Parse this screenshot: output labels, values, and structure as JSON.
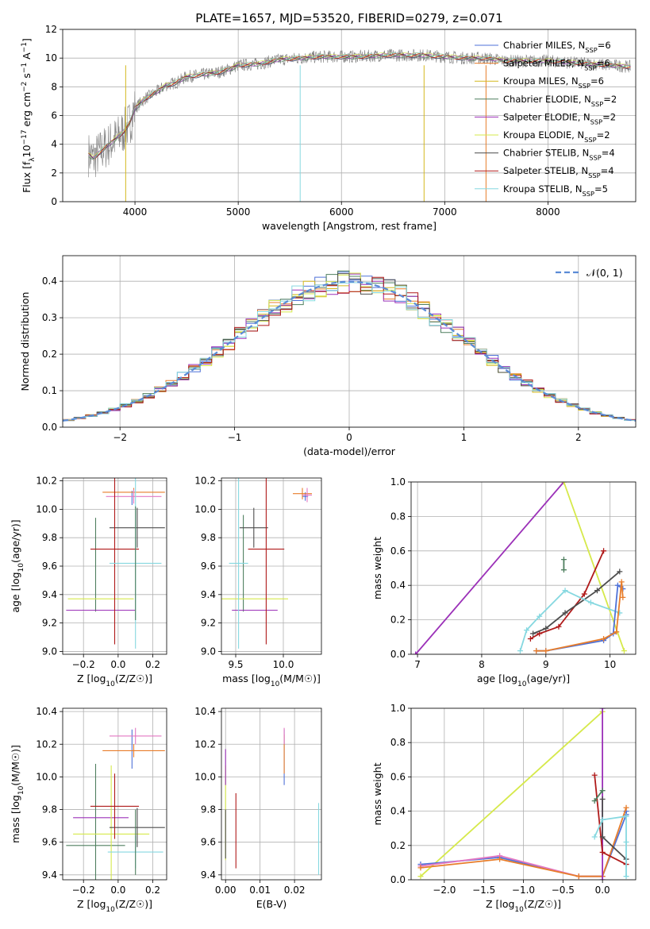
{
  "chart_data": [
    {
      "id": "spectrum",
      "type": "line",
      "title": "PLATE=1657, MJD=53520, FIBERID=0279, z=0.071",
      "xlabel": "wavelength [Angstrom, rest frame]",
      "ylabel": "Flux [f_λ10^-17 erg cm^-2 s^-1 A^-1]",
      "xlim": [
        3300,
        8850
      ],
      "ylim": [
        0,
        12
      ],
      "xticks": [
        4000,
        5000,
        6000,
        7000,
        8000
      ],
      "yticks": [
        0,
        2,
        4,
        6,
        8,
        10,
        12
      ],
      "grid": true,
      "legend_position": "right",
      "data_series": {
        "name": "data",
        "color": "#808080",
        "x": [
          3550,
          3600,
          3650,
          3700,
          3750,
          3800,
          3850,
          3900,
          3950,
          4000,
          4100,
          4200,
          4300,
          4400,
          4500,
          4600,
          4700,
          4800,
          4900,
          5000,
          5200,
          5400,
          5600,
          5800,
          6000,
          6200,
          6400,
          6600,
          6800,
          7000,
          7200,
          7400,
          7600,
          7800,
          8000,
          8200,
          8400,
          8600,
          8800
        ],
        "y": [
          3.3,
          3.0,
          3.4,
          3.7,
          4.0,
          4.3,
          4.6,
          5.0,
          5.5,
          6.5,
          7.2,
          7.6,
          8.1,
          8.3,
          8.7,
          8.8,
          8.9,
          9.0,
          9.2,
          9.5,
          9.6,
          9.9,
          10.0,
          10.1,
          10.1,
          10.1,
          10.2,
          10.2,
          10.2,
          10.1,
          10.0,
          10.0,
          9.8,
          9.8,
          9.8,
          9.7,
          9.6,
          9.5,
          9.4
        ]
      },
      "legend": [
        {
          "label": "Chabrier MILES, N_SSP=6",
          "color": "#4f72d8"
        },
        {
          "label": "Salpeter MILES, N_SSP=6",
          "color": "#e87d2a"
        },
        {
          "label": "Kroupa MILES, N_SSP=6",
          "color": "#d4b81e"
        },
        {
          "label": "Chabrier ELODIE, N_SSP=2",
          "color": "#4f7f5f"
        },
        {
          "label": "Salpeter ELODIE, N_SSP=2",
          "color": "#9b30b8"
        },
        {
          "label": "Kroupa ELODIE, N_SSP=2",
          "color": "#d6e94b"
        },
        {
          "label": "Chabrier STELIB, N_SSP=4",
          "color": "#4d4d4d"
        },
        {
          "label": "Salpeter STELIB, N_SSP=4",
          "color": "#b01a1a"
        },
        {
          "label": "Kroupa STELIB, N_SSP=5",
          "color": "#86d8e0"
        }
      ]
    },
    {
      "id": "residuals",
      "type": "histogram",
      "xlabel": "(data-model)/error",
      "ylabel": "Normed distribution",
      "xlim": [
        -2.5,
        2.5
      ],
      "ylim": [
        0,
        0.47
      ],
      "xticks": [
        -2,
        -1,
        0,
        1,
        2
      ],
      "yticks": [
        0.0,
        0.1,
        0.2,
        0.3,
        0.4
      ],
      "grid": true,
      "legend": [
        {
          "label": "N(0,1)",
          "color": "#5b8bd6"
        }
      ],
      "bin_width": 0.1,
      "bin_start": -2.5,
      "reference_curve": "normal pdf, mean 0, sigma 1"
    },
    {
      "id": "age-vs-Z",
      "type": "errorbar",
      "xlabel": "Z [log10(Z/Z☉)]",
      "ylabel": "age  [log10(age/yr)]",
      "xlim": [
        -0.32,
        0.28
      ],
      "ylim": [
        8.98,
        10.22
      ],
      "xticks": [
        -0.2,
        0.0,
        0.2
      ],
      "yticks": [
        9.0,
        9.2,
        9.4,
        9.6,
        9.8,
        10.0,
        10.2
      ],
      "grid": true,
      "points": [
        {
          "color": "#4f72d8",
          "x": 0.08,
          "xerr": 0.0,
          "y": 10.08,
          "yerr": 0.05
        },
        {
          "color": "#e87d2a",
          "x": 0.09,
          "xerr": 0.18,
          "y": 10.12,
          "yerr": 0.03
        },
        {
          "color": "#e377c2",
          "x": 0.09,
          "xerr": 0.16,
          "y": 10.09,
          "yerr": 0.05
        },
        {
          "color": "#4f7f5f",
          "x": -0.13,
          "xerr": 0.0,
          "y": 9.61,
          "yerr": 0.33
        },
        {
          "color": "#9b30b8",
          "x": -0.1,
          "xerr": 0.2,
          "y": 9.29,
          "yerr": 0.0
        },
        {
          "color": "#d6e94b",
          "x": -0.1,
          "xerr": 0.19,
          "y": 9.37,
          "yerr": 0.0
        },
        {
          "color": "#4d4d4d",
          "x": 0.11,
          "xerr": 0.16,
          "y": 9.87,
          "yerr": 0.14
        },
        {
          "color": "#b01a1a",
          "x": -0.02,
          "xerr": 0.14,
          "y": 9.72,
          "yerr": 0.67
        },
        {
          "color": "#86d8e0",
          "x": 0.1,
          "xerr": 0.15,
          "y": 9.62,
          "yerr": 0.6
        },
        {
          "color": "#4f7f5f",
          "x": 0.1,
          "xerr": 0.0,
          "y": 9.62,
          "yerr": 0.4
        }
      ]
    },
    {
      "id": "age-vs-mass",
      "type": "errorbar",
      "xlabel": "mass [log10(M/M☉)]",
      "ylabel": "",
      "xlim": [
        9.35,
        10.4
      ],
      "ylim": [
        8.98,
        10.22
      ],
      "xticks": [
        9.5,
        10.0
      ],
      "yticks": [
        9.0,
        9.2,
        9.4,
        9.6,
        9.8,
        10.0,
        10.2
      ],
      "grid": true,
      "points": [
        {
          "color": "#4f72d8",
          "x": 10.23,
          "xerr": 0.03,
          "y": 10.09,
          "yerr": 0.03
        },
        {
          "color": "#e87d2a",
          "x": 10.2,
          "xerr": 0.1,
          "y": 10.11,
          "yerr": 0.04
        },
        {
          "color": "#e377c2",
          "x": 10.25,
          "xerr": 0.05,
          "y": 10.1,
          "yerr": 0.05
        },
        {
          "color": "#4f7f5f",
          "x": 9.58,
          "xerr": 0.0,
          "y": 9.62,
          "yerr": 0.34
        },
        {
          "color": "#9b30b8",
          "x": 9.7,
          "xerr": 0.24,
          "y": 9.29,
          "yerr": 0.0
        },
        {
          "color": "#d6e94b",
          "x": 9.65,
          "xerr": 0.4,
          "y": 9.37,
          "yerr": 0.0
        },
        {
          "color": "#4d4d4d",
          "x": 9.69,
          "xerr": 0.15,
          "y": 9.87,
          "yerr": 0.14
        },
        {
          "color": "#b01a1a",
          "x": 9.82,
          "xerr": 0.19,
          "y": 9.72,
          "yerr": 0.67
        },
        {
          "color": "#86d8e0",
          "x": 9.53,
          "xerr": 0.1,
          "y": 9.62,
          "yerr": 0.6
        }
      ]
    },
    {
      "id": "weight-vs-age",
      "type": "line",
      "xlabel": "age  [log10(age/yr)]",
      "ylabel": "mass weight",
      "xlim": [
        6.9,
        10.4
      ],
      "ylim": [
        0,
        1
      ],
      "xticks": [
        7,
        8,
        9,
        10
      ],
      "yticks": [
        0.0,
        0.2,
        0.4,
        0.6,
        0.8,
        1.0
      ],
      "grid": true,
      "series": [
        {
          "color": "#9b30b8",
          "x": [
            6.97,
            9.28
          ],
          "y": [
            0.0,
            1.0
          ]
        },
        {
          "color": "#d6e94b",
          "x": [
            9.28,
            10.22
          ],
          "y": [
            1.0,
            0.02
          ]
        },
        {
          "color": "#b01a1a",
          "x": [
            8.76,
            8.9,
            9.2,
            9.6,
            9.9
          ],
          "y": [
            0.09,
            0.12,
            0.16,
            0.35,
            0.6
          ]
        },
        {
          "color": "#4d4d4d",
          "x": [
            8.8,
            9.0,
            9.3,
            9.8,
            10.15
          ],
          "y": [
            0.12,
            0.15,
            0.24,
            0.37,
            0.48
          ]
        },
        {
          "color": "#86d8e0",
          "x": [
            8.6,
            8.7,
            8.9,
            9.3,
            9.7,
            10.15
          ],
          "y": [
            0.02,
            0.14,
            0.22,
            0.37,
            0.3,
            0.24
          ]
        },
        {
          "color": "#4f72d8",
          "x": [
            8.85,
            9.0,
            9.9,
            10.05,
            10.12,
            10.2
          ],
          "y": [
            0.02,
            0.02,
            0.08,
            0.12,
            0.4,
            0.38
          ]
        },
        {
          "color": "#e87d2a",
          "x": [
            8.85,
            9.0,
            9.9,
            10.1,
            10.18,
            10.2
          ],
          "y": [
            0.02,
            0.02,
            0.09,
            0.13,
            0.42,
            0.33
          ]
        },
        {
          "color": "#4f7f5f",
          "x": [
            9.28,
            9.28
          ],
          "y": [
            0.49,
            0.55
          ]
        }
      ]
    },
    {
      "id": "mass-vs-Z",
      "type": "errorbar",
      "xlabel": "Z [log10(Z/Z☉)]",
      "ylabel": "mass [log10(M/M☉)]",
      "xlim": [
        -0.32,
        0.28
      ],
      "ylim": [
        9.37,
        10.42
      ],
      "xticks": [
        -0.2,
        0.0,
        0.2
      ],
      "yticks": [
        9.4,
        9.6,
        9.8,
        10.0,
        10.2,
        10.4
      ],
      "grid": true,
      "points": [
        {
          "color": "#4f72d8",
          "x": 0.08,
          "xerr": 0.0,
          "y": 10.17,
          "yerr": 0.12
        },
        {
          "color": "#e377c2",
          "x": 0.1,
          "xerr": 0.15,
          "y": 10.25,
          "yerr": 0.05
        },
        {
          "color": "#e87d2a",
          "x": 0.09,
          "xerr": 0.18,
          "y": 10.16,
          "yerr": 0.04
        },
        {
          "color": "#4f7f5f",
          "x": -0.13,
          "xerr": 0.17,
          "y": 9.58,
          "yerr": 0.5
        },
        {
          "color": "#9b30b8",
          "x": -0.1,
          "xerr": 0.16,
          "y": 9.75,
          "yerr": 0.0
        },
        {
          "color": "#d6e94b",
          "x": -0.04,
          "xerr": 0.22,
          "y": 9.65,
          "yerr": 0.42
        },
        {
          "color": "#4d4d4d",
          "x": 0.11,
          "xerr": 0.16,
          "y": 9.69,
          "yerr": 0.12
        },
        {
          "color": "#b01a1a",
          "x": -0.02,
          "xerr": 0.14,
          "y": 9.82,
          "yerr": 0.2
        },
        {
          "color": "#86d8e0",
          "x": 0.1,
          "xerr": 0.16,
          "y": 9.54,
          "yerr": 0.1
        },
        {
          "color": "#4f7f5f",
          "x": 0.1,
          "xerr": 0.0,
          "y": 9.6,
          "yerr": 0.2
        }
      ]
    },
    {
      "id": "mass-vs-ebv",
      "type": "errorbar",
      "xlabel": "E(B-V)",
      "ylabel": "",
      "xlim": [
        -0.0012,
        0.0278
      ],
      "ylim": [
        9.37,
        10.42
      ],
      "xticks": [
        0.0,
        0.01,
        0.02
      ],
      "yticks": [
        9.4,
        9.6,
        9.8,
        10.0,
        10.2,
        10.4
      ],
      "grid": true,
      "points": [
        {
          "color": "#d6e94b",
          "x": 0.0,
          "xerr": 0.0,
          "y": 9.78,
          "yerr": 0.29
        },
        {
          "color": "#9b30b8",
          "x": 0.0,
          "xerr": 0.0,
          "y": 10.06,
          "yerr": 0.11
        },
        {
          "color": "#4d4d4d",
          "x": 0.0,
          "xerr": 0.0,
          "y": 9.65,
          "yerr": 0.15
        },
        {
          "color": "#b01a1a",
          "x": 0.003,
          "xerr": 0.0,
          "y": 9.67,
          "yerr": 0.23
        },
        {
          "color": "#4f72d8",
          "x": 0.017,
          "xerr": 0.0,
          "y": 10.12,
          "yerr": 0.17
        },
        {
          "color": "#e87d2a",
          "x": 0.017,
          "xerr": 0.0,
          "y": 10.14,
          "yerr": 0.12
        },
        {
          "color": "#e377c2",
          "x": 0.017,
          "xerr": 0.0,
          "y": 10.25,
          "yerr": 0.05
        },
        {
          "color": "#86d8e0",
          "x": 0.027,
          "xerr": 0.0,
          "y": 9.62,
          "yerr": 0.22
        }
      ]
    },
    {
      "id": "weight-vs-Z",
      "type": "line",
      "xlabel": "Z [log10(Z/Z☉)]",
      "ylabel": "mass weight",
      "xlim": [
        -2.42,
        0.42
      ],
      "ylim": [
        0,
        1
      ],
      "xticks": [
        -2.0,
        -1.5,
        -1.0,
        -0.5,
        0.0
      ],
      "yticks": [
        0.0,
        0.2,
        0.4,
        0.6,
        0.8,
        1.0
      ],
      "grid": true,
      "series": [
        {
          "color": "#d6e94b",
          "x": [
            -2.3,
            0.0
          ],
          "y": [
            0.02,
            0.98
          ]
        },
        {
          "color": "#4f72d8",
          "x": [
            -2.3,
            -1.3,
            -0.3,
            0.0,
            0.3,
            0.3
          ],
          "y": [
            0.09,
            0.13,
            0.02,
            0.02,
            0.38,
            0.4
          ]
        },
        {
          "color": "#e377c2",
          "x": [
            -2.3,
            -1.3,
            -0.3,
            0.0
          ],
          "y": [
            0.08,
            0.14,
            0.02,
            0.02
          ]
        },
        {
          "color": "#e87d2a",
          "x": [
            -2.3,
            -1.3,
            -0.3,
            0.0,
            0.3
          ],
          "y": [
            0.07,
            0.12,
            0.02,
            0.02,
            0.42
          ]
        },
        {
          "color": "#9b30b8",
          "x": [
            0.0,
            0.0
          ],
          "y": [
            0.0,
            1.0
          ]
        },
        {
          "color": "#b01a1a",
          "x": [
            -0.1,
            0.0,
            0.3
          ],
          "y": [
            0.61,
            0.16,
            0.09
          ]
        },
        {
          "color": "#4d4d4d",
          "x": [
            0.0,
            0.0,
            0.3
          ],
          "y": [
            0.47,
            0.25,
            0.12
          ]
        },
        {
          "color": "#4f7f5f",
          "x": [
            -0.1,
            0.0
          ],
          "y": [
            0.46,
            0.52
          ]
        },
        {
          "color": "#86d8e0",
          "x": [
            -0.1,
            0.0,
            0.3,
            0.3,
            0.3
          ],
          "y": [
            0.25,
            0.35,
            0.37,
            0.22,
            0.02
          ]
        }
      ]
    }
  ]
}
